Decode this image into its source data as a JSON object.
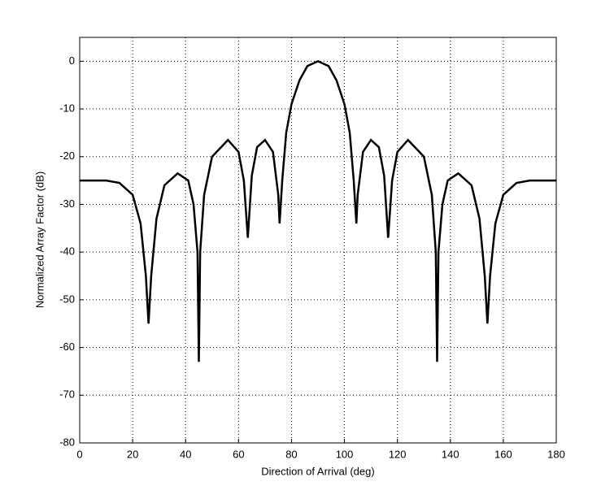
{
  "chart_data": {
    "type": "line",
    "xlabel": "Direction of Arrival (deg)",
    "ylabel": "Normalized Array Factor (dB)",
    "x": [
      0,
      10,
      15,
      20,
      23,
      25,
      26,
      27,
      29,
      32,
      37,
      41,
      43,
      44.5,
      45,
      45.5,
      47,
      50,
      56,
      60,
      62,
      63.5,
      65,
      67,
      70,
      73,
      75,
      75.5,
      76.5,
      78,
      80,
      83,
      86,
      90,
      94,
      97,
      100,
      102,
      103.5,
      104.5,
      105,
      107,
      110,
      113,
      115,
      116.5,
      118,
      120,
      124,
      130,
      133,
      134.5,
      135,
      135.5,
      137,
      139,
      143,
      148,
      151,
      153,
      154,
      155,
      157,
      160,
      165,
      170,
      180
    ],
    "series": [
      {
        "color": "#000000",
        "values": [
          -25,
          -25,
          -25.5,
          -28,
          -34,
          -45,
          -55,
          -45,
          -33,
          -26,
          -23.5,
          -25,
          -30,
          -40,
          -63,
          -40,
          -28,
          -20,
          -16.5,
          -19,
          -25,
          -37,
          -24,
          -18,
          -16.5,
          -19,
          -28,
          -34,
          -25,
          -15,
          -9,
          -4,
          -1,
          0,
          -1,
          -4,
          -9,
          -15,
          -25,
          -34,
          -28,
          -19,
          -16.5,
          -18,
          -24,
          -37,
          -25,
          -19,
          -16.5,
          -20,
          -28,
          -40,
          -63,
          -40,
          -30,
          -25,
          -23.5,
          -26,
          -33,
          -45,
          -55,
          -45,
          -34,
          -28,
          -25.5,
          -25,
          -25
        ]
      }
    ],
    "xlim": [
      0,
      180
    ],
    "xticks": [
      0,
      20,
      40,
      60,
      80,
      100,
      120,
      140,
      160,
      180
    ],
    "ylim": [
      -80,
      5
    ],
    "yticks": [
      0,
      -10,
      -20,
      -30,
      -40,
      -50,
      -60,
      -70,
      -80
    ],
    "grid": true
  }
}
